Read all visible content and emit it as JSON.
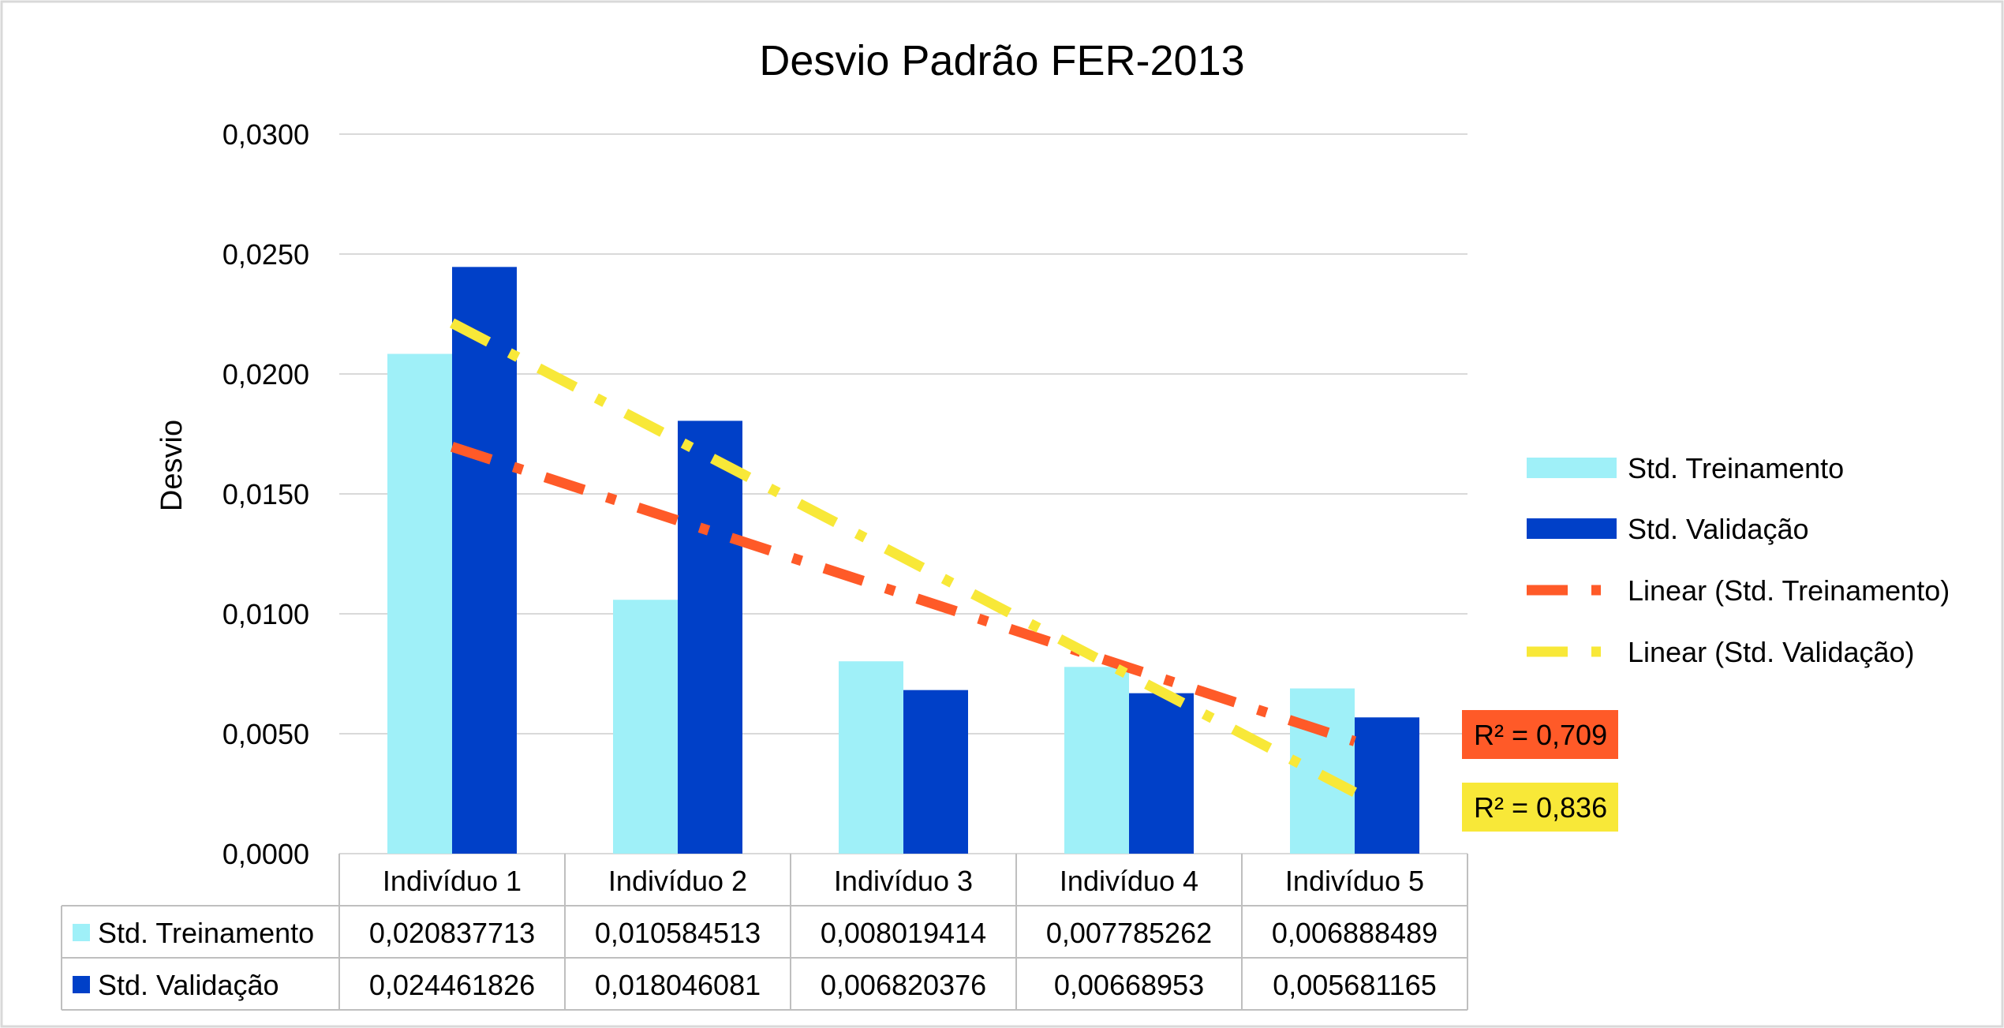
{
  "chart_data": {
    "type": "bar",
    "title": "Desvio Padrão FER-2013",
    "xlabel": "",
    "ylabel": "Desvio",
    "ylim": [
      0,
      0.03
    ],
    "yticks": [
      "0,0000",
      "0,0050",
      "0,0100",
      "0,0150",
      "0,0200",
      "0,0250",
      "0,0300"
    ],
    "grid": true,
    "legend_position": "right",
    "categories": [
      "Indivíduo 1",
      "Indivíduo 2",
      "Indivíduo 3",
      "Indivíduo 4",
      "Indivíduo 5"
    ],
    "series": [
      {
        "name": "Std. Treinamento",
        "color": "#9FF0F8",
        "values": [
          0.020837713,
          0.010584513,
          0.008019414,
          0.007785262,
          0.006888489
        ],
        "value_labels": [
          "0,020837713",
          "0,010584513",
          "0,008019414",
          "0,007785262",
          "0,006888489"
        ]
      },
      {
        "name": "Std. Validação",
        "color": "#0040C8",
        "values": [
          0.024461826,
          0.018046081,
          0.006820376,
          0.00668953,
          0.005681165
        ],
        "value_labels": [
          "0,024461826",
          "0,018046081",
          "0,006820376",
          "0,00668953",
          "0,005681165"
        ]
      }
    ],
    "trendlines": [
      {
        "name": "Linear (Std. Treinamento)",
        "color": "#FF5A28",
        "r2_label": "R² = 0,709",
        "r2_bg": "#FF5A28",
        "dash": "long-short"
      },
      {
        "name": "Linear (Std. Validação)",
        "color": "#F8E838",
        "r2_label": "R² = 0,836",
        "r2_bg": "#F8E838",
        "dash": "long-short"
      }
    ]
  }
}
